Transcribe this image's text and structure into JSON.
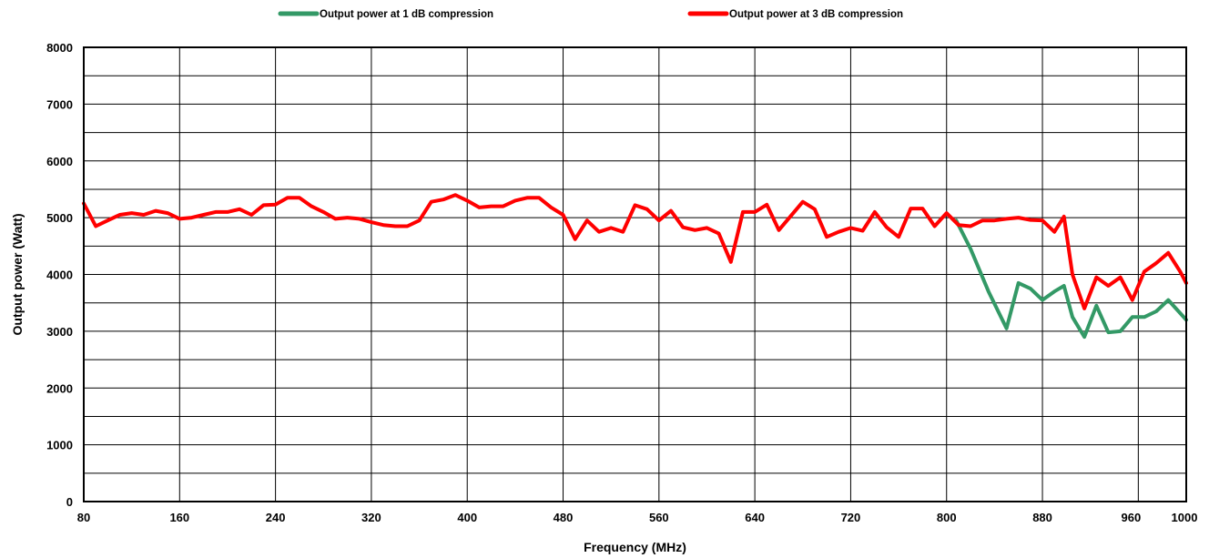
{
  "chart_data": {
    "type": "line",
    "xlabel": "Frequency (MHz)",
    "ylabel": "Output power (Watt)",
    "xlim": [
      80,
      1000
    ],
    "ylim": [
      0,
      8000
    ],
    "x_ticks": [
      "80",
      "160",
      "240",
      "320",
      "400",
      "480",
      "560",
      "640",
      "720",
      "800",
      "880",
      "960",
      "1000"
    ],
    "y_ticks": [
      "0",
      "1000",
      "2000",
      "3000",
      "4000",
      "5000",
      "6000",
      "7000",
      "8000"
    ],
    "grid": true,
    "legend_position": "top",
    "series": [
      {
        "name": "Output power at 1 dB compression",
        "color": "#339966",
        "x": [
          808,
          820,
          835,
          850,
          860,
          870,
          880,
          890,
          898,
          905,
          915,
          925,
          935,
          945,
          955,
          965,
          975,
          985,
          1000
        ],
        "y": [
          4950,
          4450,
          3700,
          3050,
          3850,
          3750,
          3550,
          3700,
          3800,
          3250,
          2900,
          3450,
          2980,
          3000,
          3250,
          3250,
          3350,
          3550,
          3200
        ]
      },
      {
        "name": "Output power at 3 dB compression",
        "color": "#ff0000",
        "x": [
          80,
          90,
          100,
          110,
          120,
          130,
          140,
          150,
          160,
          170,
          180,
          190,
          200,
          210,
          220,
          230,
          240,
          250,
          260,
          270,
          280,
          290,
          300,
          310,
          320,
          330,
          340,
          350,
          360,
          370,
          380,
          390,
          400,
          410,
          420,
          430,
          440,
          450,
          460,
          470,
          480,
          490,
          500,
          510,
          520,
          530,
          540,
          550,
          560,
          570,
          580,
          590,
          600,
          610,
          620,
          630,
          640,
          650,
          660,
          670,
          680,
          690,
          700,
          710,
          720,
          730,
          740,
          750,
          760,
          770,
          780,
          790,
          800,
          810,
          820,
          830,
          840,
          850,
          860,
          870,
          880,
          890,
          898,
          905,
          915,
          925,
          935,
          945,
          955,
          965,
          975,
          985,
          995,
          1000
        ],
        "y": [
          5250,
          4850,
          4950,
          5050,
          5080,
          5050,
          5120,
          5080,
          4980,
          5000,
          5050,
          5100,
          5100,
          5150,
          5050,
          5220,
          5230,
          5350,
          5350,
          5200,
          5100,
          4980,
          5000,
          4980,
          4920,
          4870,
          4850,
          4850,
          4950,
          5280,
          5320,
          5400,
          5300,
          5180,
          5200,
          5200,
          5300,
          5350,
          5350,
          5180,
          5050,
          4620,
          4950,
          4750,
          4820,
          4750,
          5220,
          5150,
          4950,
          5120,
          4830,
          4780,
          4820,
          4720,
          4220,
          5100,
          5100,
          5230,
          4780,
          5030,
          5280,
          5150,
          4660,
          4750,
          4820,
          4770,
          5100,
          4830,
          4660,
          5160,
          5160,
          4850,
          5080,
          4870,
          4850,
          4950,
          4950,
          4980,
          5000,
          4960,
          4950,
          4750,
          5020,
          4000,
          3400,
          3950,
          3800,
          3950,
          3550,
          4050,
          4200,
          4380,
          4050,
          3850
        ]
      }
    ]
  }
}
